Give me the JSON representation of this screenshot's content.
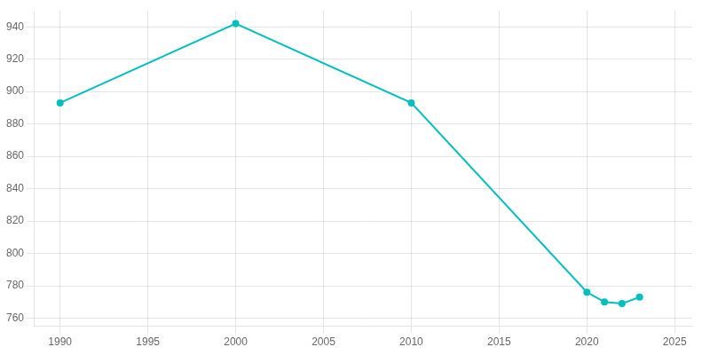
{
  "chart_data": {
    "type": "line",
    "x": [
      1990,
      2000,
      2010,
      2020,
      2021,
      2022,
      2023
    ],
    "values": [
      893,
      942,
      893,
      776,
      770,
      769,
      773
    ],
    "color": "#00BFBF",
    "marker": "circle",
    "xlim": [
      1988.5,
      2026
    ],
    "ylim": [
      755,
      950
    ],
    "xticks": [
      1990,
      1995,
      2000,
      2005,
      2010,
      2015,
      2020,
      2025
    ],
    "yticks": [
      760,
      780,
      800,
      820,
      840,
      860,
      880,
      900,
      920,
      940
    ],
    "grid": true
  }
}
